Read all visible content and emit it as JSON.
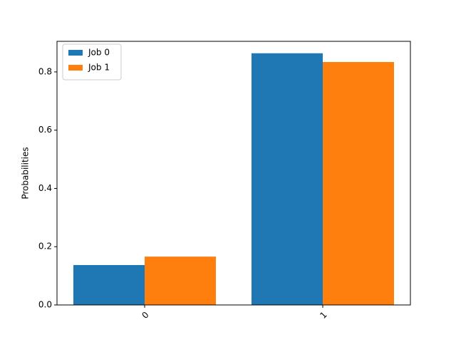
{
  "chart_data": {
    "type": "bar",
    "y_label": "Probabilities",
    "categories": [
      "0",
      "1"
    ],
    "series": [
      {
        "name": "Job 0",
        "color": "#1f77b4",
        "values": [
          0.137,
          0.864
        ]
      },
      {
        "name": "Job 1",
        "color": "#ff7f0e",
        "values": [
          0.166,
          0.834
        ]
      }
    ],
    "ylim": [
      0,
      0.905
    ],
    "yticks": [
      {
        "value": 0,
        "label": "0.0"
      },
      0.2,
      0.4,
      0.6,
      0.8
    ],
    "legend": "upper left"
  }
}
